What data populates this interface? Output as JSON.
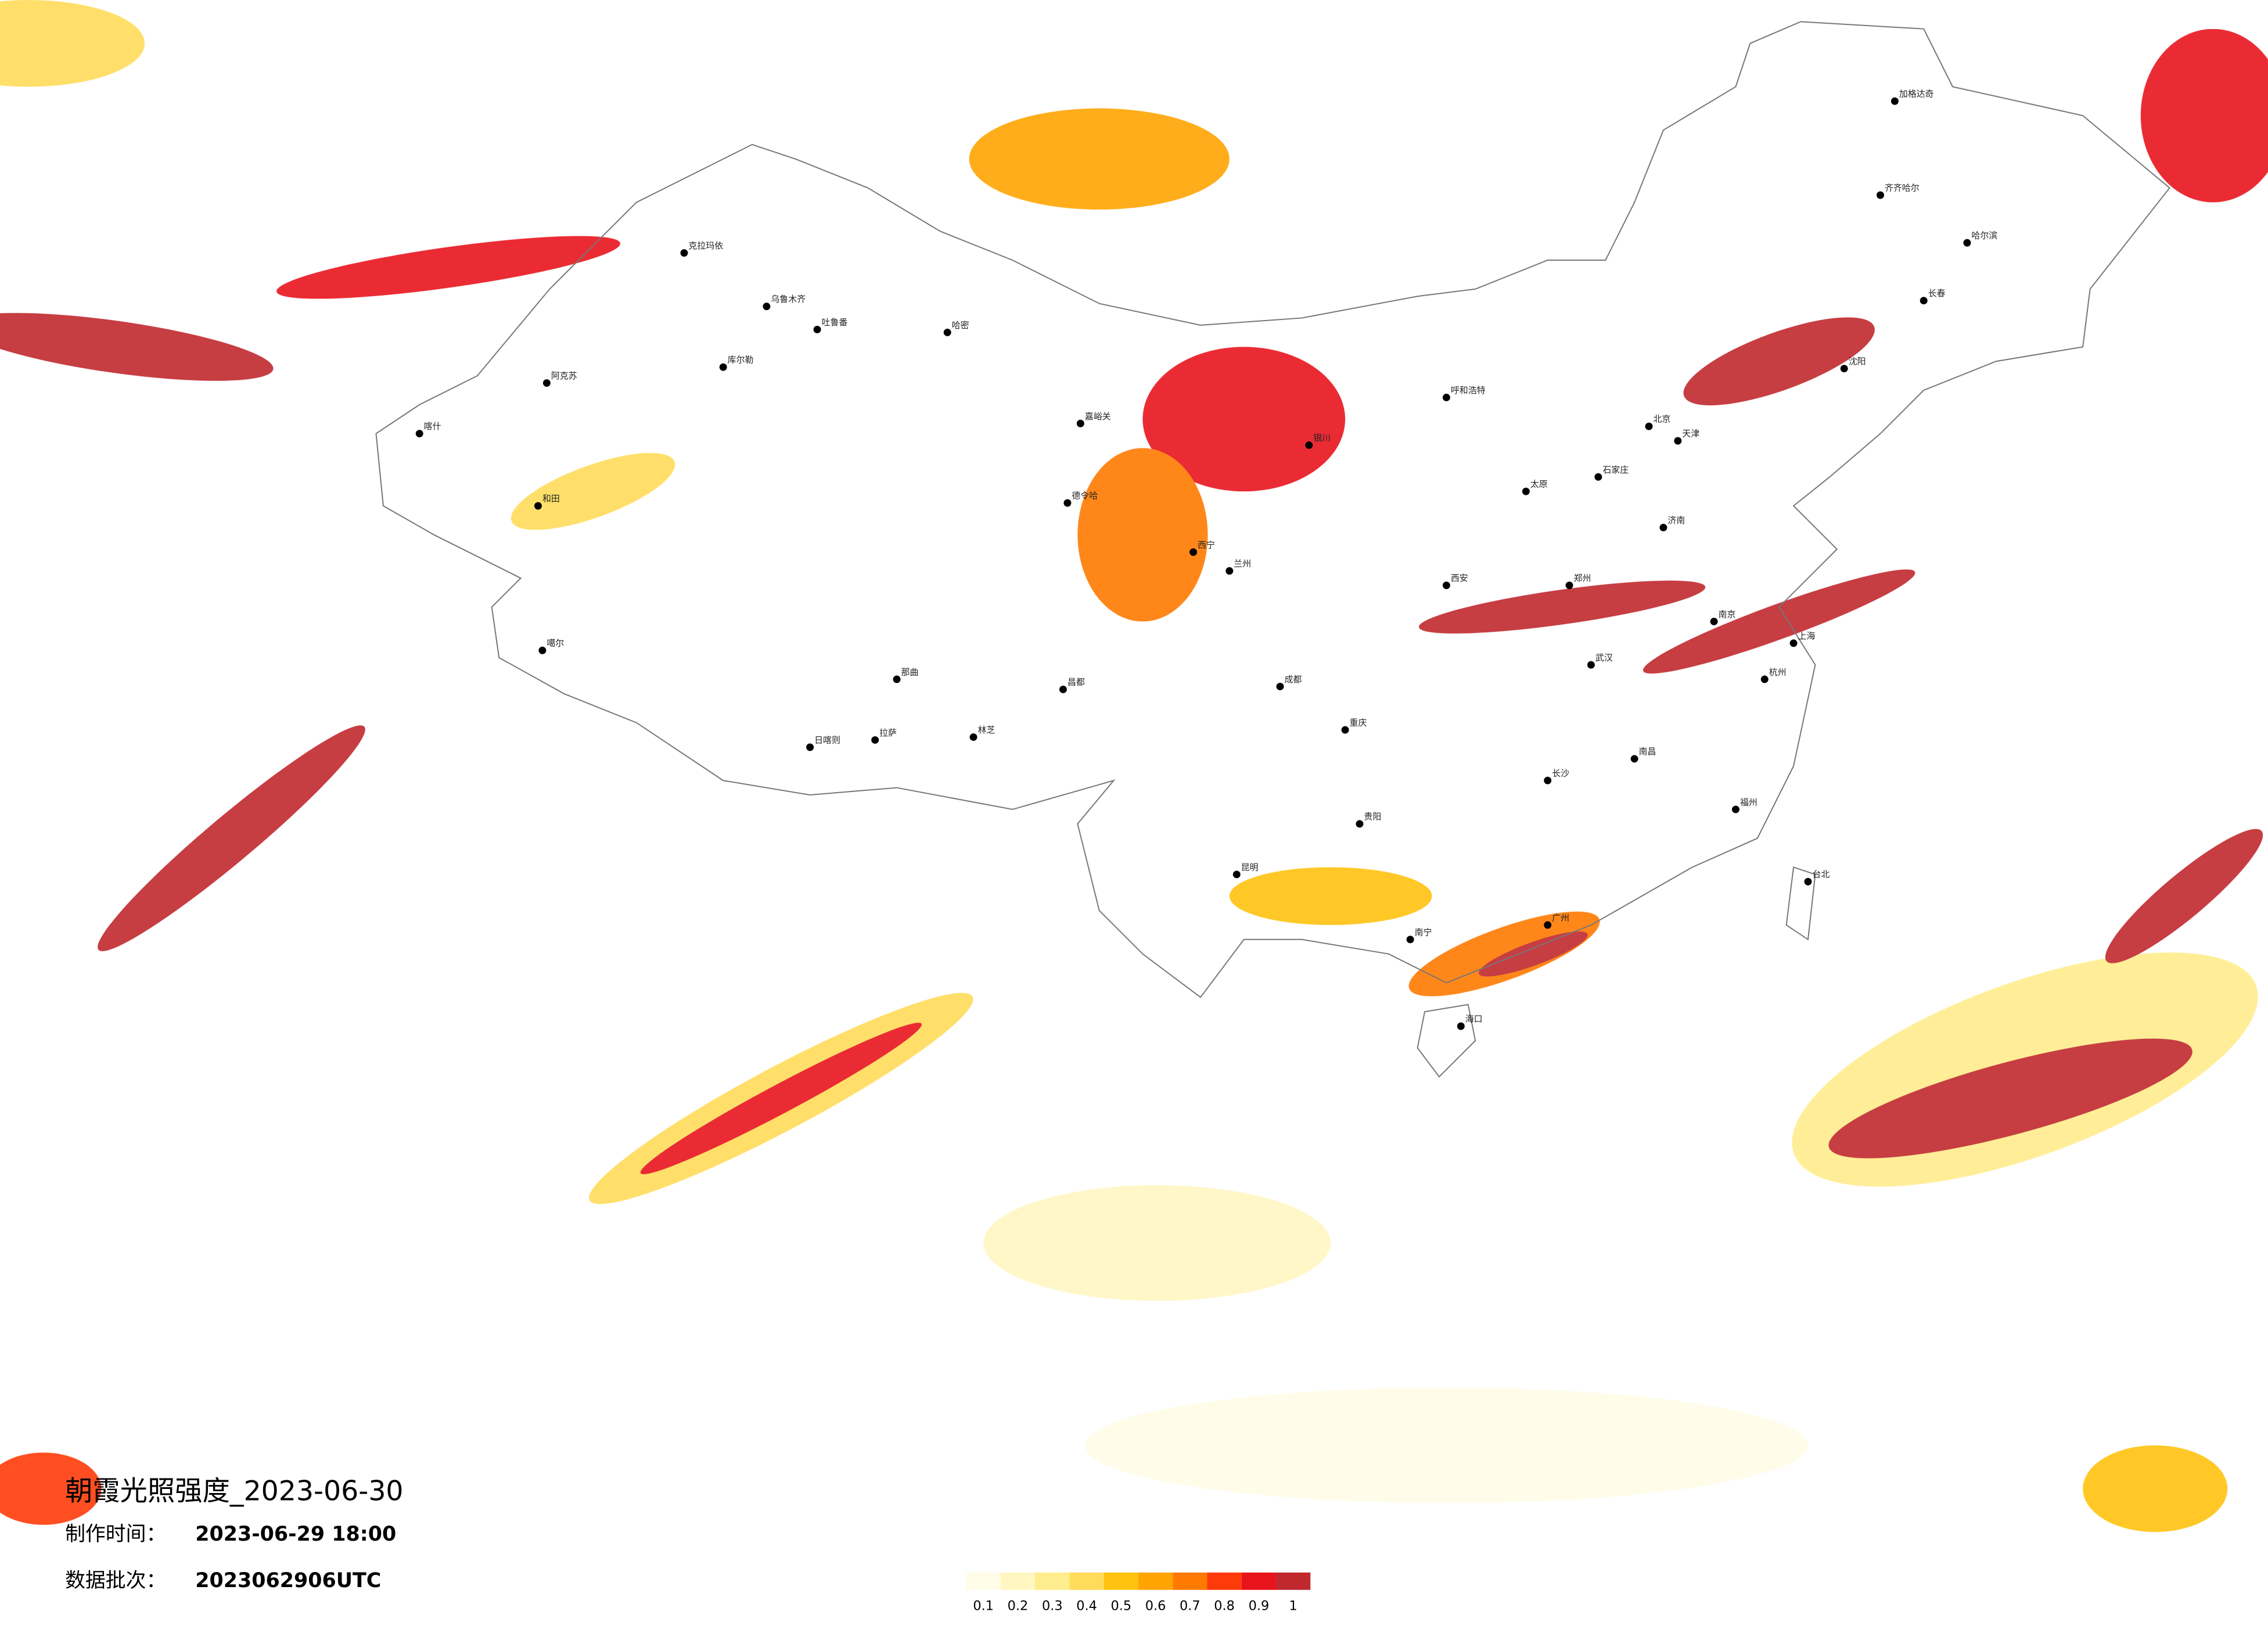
{
  "title": "朝霞光照强度_2023-06-30",
  "made_time": {
    "label": "制作时间：",
    "value": "2023-06-29 18:00"
  },
  "batch": {
    "label": "数据批次：",
    "value": "2023062906UTC"
  },
  "legend": {
    "colors": [
      "#fffce8",
      "#fff6c2",
      "#ffec8c",
      "#ffdc5a",
      "#ffc20e",
      "#ffa400",
      "#ff7a00",
      "#ff3a0a",
      "#e8141c",
      "#c0282d"
    ],
    "ticks": [
      0.1,
      0.2,
      0.3,
      0.4,
      0.5,
      0.6,
      0.7,
      0.8,
      0.9,
      1
    ]
  },
  "cities": [
    "克拉玛依",
    "乌鲁木齐",
    "吐鲁番",
    "哈密",
    "阿克苏",
    "库尔勒",
    "喀什",
    "和田",
    "噶尔",
    "日喀则",
    "拉萨",
    "林芝",
    "那曲",
    "昌都",
    "德令哈",
    "嘉峪关",
    "西宁",
    "兰州",
    "银川",
    "呼和浩特",
    "北京",
    "天津",
    "石家庄",
    "太原",
    "济南",
    "郑州",
    "西安",
    "武汉",
    "南京",
    "上海",
    "杭州",
    "成都",
    "重庆",
    "贵阳",
    "昆明",
    "南宁",
    "广州",
    "福州",
    "南昌",
    "长沙",
    "海口",
    "沈阳",
    "长春",
    "哈尔滨",
    "齐齐哈尔",
    "台北",
    "加格达奇"
  ]
}
